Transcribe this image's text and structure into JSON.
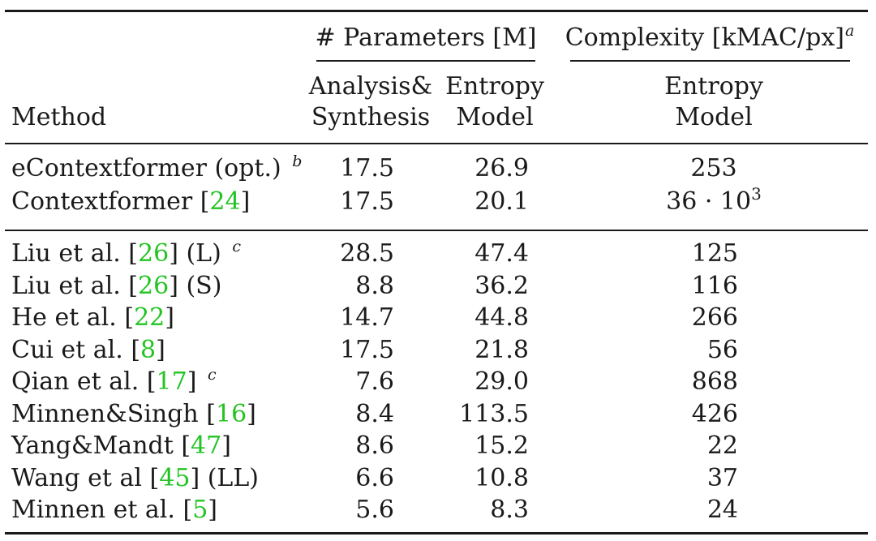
{
  "table": {
    "group_headers": {
      "params": "# Parameters [M]",
      "complexity": "Complexity [kMAC/px]",
      "complexity_sup": "a"
    },
    "sub_headers": {
      "method": "Method",
      "analysis_line1": "Analysis&",
      "analysis_line2": "Synthesis",
      "entropy_params_line1": "Entropy",
      "entropy_params_line2": "Model",
      "entropy_complexity_line1": "Entropy",
      "entropy_complexity_line2": "Model"
    },
    "group1": [
      {
        "name": "eContextformer (opt.)",
        "cite": "",
        "suffix": "",
        "footnote": "b",
        "analysis": "17.5",
        "entropy": "26.9",
        "complexity": "253",
        "complexity_sup": ""
      },
      {
        "name": "Contextformer",
        "cite": "24",
        "suffix": "",
        "footnote": "",
        "analysis": "17.5",
        "entropy": "20.1",
        "complexity": "36 · 10",
        "complexity_sup": "3"
      }
    ],
    "group2": [
      {
        "name": "Liu et al.",
        "cite": "26",
        "suffix": "(L)",
        "footnote": "c",
        "analysis": "28.5",
        "entropy": "47.4",
        "complexity": "125"
      },
      {
        "name": "Liu et al.",
        "cite": "26",
        "suffix": "(S)",
        "footnote": "",
        "analysis": "8.8",
        "entropy": "36.2",
        "complexity": "116"
      },
      {
        "name": "He et al.",
        "cite": "22",
        "suffix": "",
        "footnote": "",
        "analysis": "14.7",
        "entropy": "44.8",
        "complexity": "266"
      },
      {
        "name": "Cui et al.",
        "cite": "8",
        "suffix": "",
        "footnote": "",
        "analysis": "17.5",
        "entropy": "21.8",
        "complexity": "56"
      },
      {
        "name": "Qian et al.",
        "cite": "17",
        "suffix": "",
        "footnote": "c",
        "analysis": "7.6",
        "entropy": "29.0",
        "complexity": "868"
      },
      {
        "name": "Minnen&Singh",
        "cite": "16",
        "suffix": "",
        "footnote": "",
        "analysis": "8.4",
        "entropy": "113.5",
        "complexity": "426"
      },
      {
        "name": "Yang&Mandt",
        "cite": "47",
        "suffix": "",
        "footnote": "",
        "analysis": "8.6",
        "entropy": "15.2",
        "complexity": "22"
      },
      {
        "name": "Wang et al",
        "cite": "45",
        "suffix": "(LL)",
        "footnote": "",
        "analysis": "6.6",
        "entropy": "10.8",
        "complexity": "37"
      },
      {
        "name": "Minnen et al.",
        "cite": "5",
        "suffix": "",
        "footnote": "",
        "analysis": "5.6",
        "entropy": "8.3",
        "complexity": "24"
      }
    ]
  }
}
